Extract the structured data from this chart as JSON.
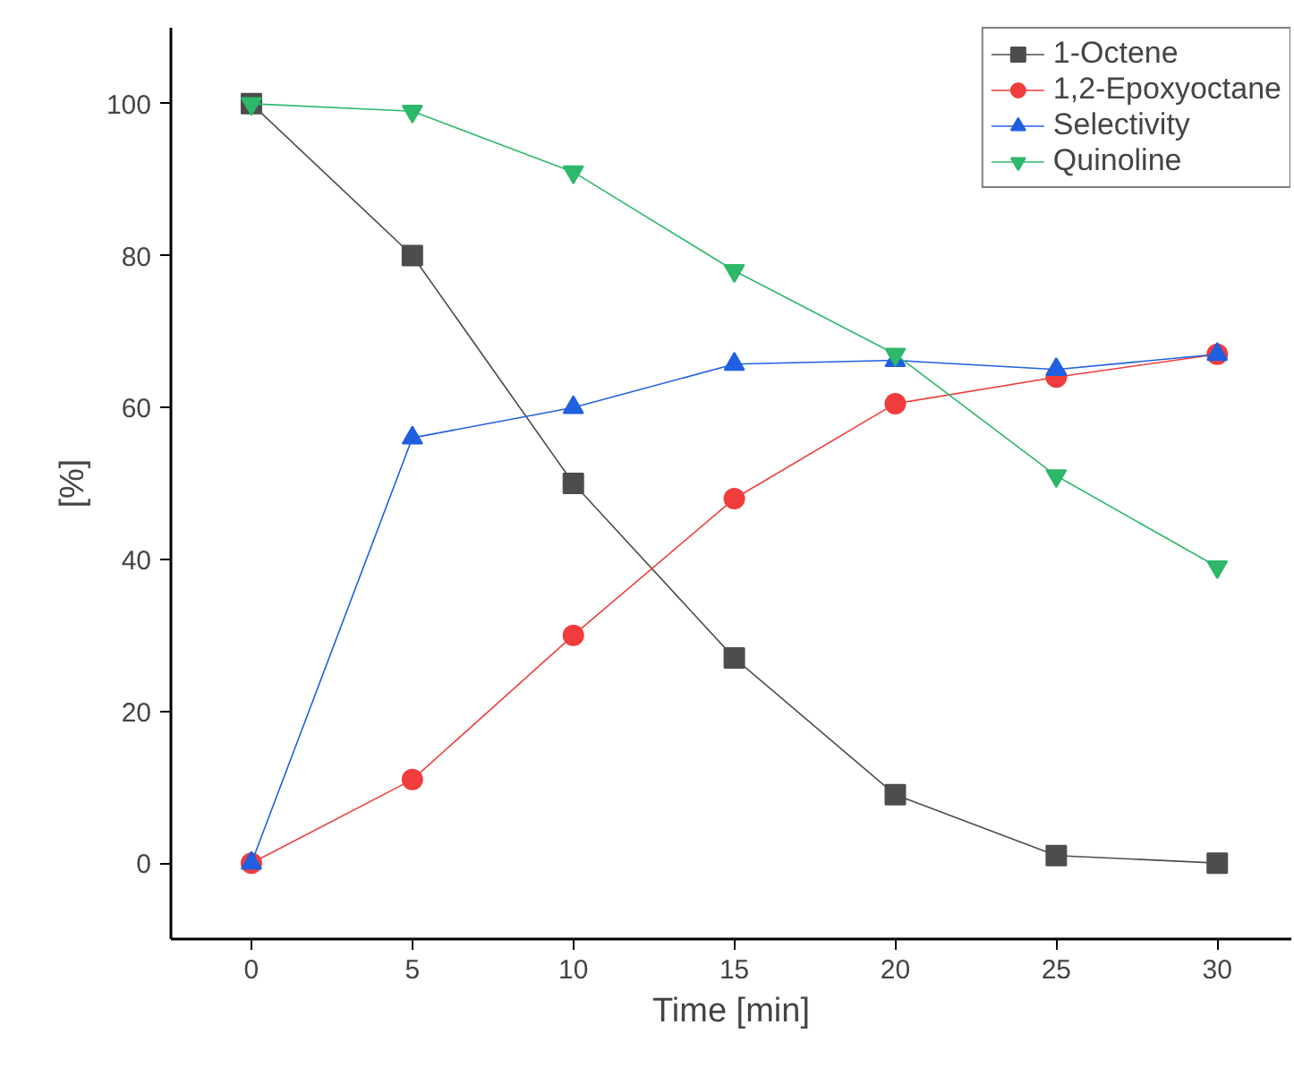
{
  "chart_data": {
    "type": "line",
    "xlabel": "Time [min]",
    "ylabel": "[%]",
    "x": [
      0,
      5,
      10,
      15,
      20,
      25,
      30
    ],
    "xlim": [
      -2.5,
      32.3
    ],
    "xticks": [
      0,
      5,
      10,
      15,
      20,
      25,
      30
    ],
    "ylim": [
      -10,
      110
    ],
    "yticks": [
      0,
      20,
      40,
      60,
      80,
      100
    ],
    "grid": false,
    "legend": "top right",
    "line_style": "solid",
    "series": [
      {
        "name": "1-Octene",
        "color": "#4d4d4d",
        "marker": "square",
        "values": [
          100,
          80,
          50,
          27,
          9,
          1,
          0
        ]
      },
      {
        "name": "1,2-Epoxyoctane",
        "color": "#f03c3c",
        "marker": "circle",
        "values": [
          0,
          11,
          30,
          48,
          60.5,
          64,
          67
        ]
      },
      {
        "name": "Selectivity",
        "color": "#1f5fe0",
        "marker": "triangle",
        "values": [
          0,
          56,
          60,
          65.7,
          66.2,
          65,
          67
        ]
      },
      {
        "name": "Quinoline",
        "color": "#2eb86a",
        "marker": "triangle",
        "values": [
          100,
          99,
          91,
          78,
          67,
          51,
          39
        ]
      }
    ]
  }
}
